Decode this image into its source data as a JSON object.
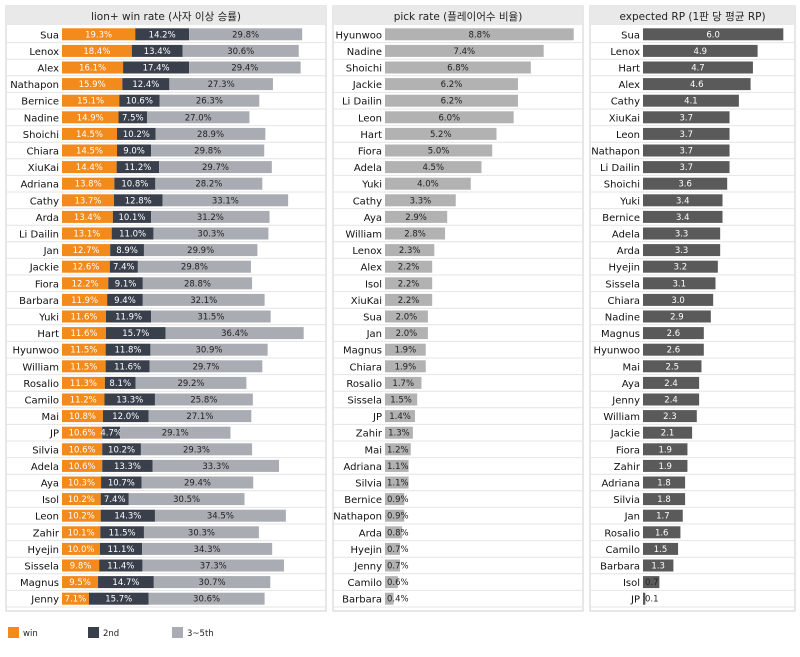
{
  "colors": {
    "win": "#f28a1c",
    "second": "#3a3f4c",
    "third_fifth": "#a9adb3",
    "pick": "#b2b2b2",
    "rp": "#5a5a5a",
    "header_bg": "#e9e9e9",
    "grid": "#e4e4e4",
    "panel_border": "#cfcfcf"
  },
  "chart_data": [
    {
      "type": "bar",
      "stacked": true,
      "orientation": "horizontal",
      "title": "lion+ win rate (사자 이상 승률)",
      "categories": [
        "Sua",
        "Lenox",
        "Alex",
        "Nathapon",
        "Bernice",
        "Nadine",
        "Shoichi",
        "Chiara",
        "XiuKai",
        "Adriana",
        "Cathy",
        "Arda",
        "Li Dailin",
        "Jan",
        "Jackie",
        "Fiora",
        "Barbara",
        "Yuki",
        "Hart",
        "Hyunwoo",
        "William",
        "Rosalio",
        "Camilo",
        "Mai",
        "JP",
        "Silvia",
        "Adela",
        "Aya",
        "Isol",
        "Leon",
        "Zahir",
        "Hyejin",
        "Sissela",
        "Magnus",
        "Jenny"
      ],
      "series": [
        {
          "name": "win",
          "values": [
            19.3,
            18.4,
            16.1,
            15.9,
            15.1,
            14.9,
            14.5,
            14.5,
            14.4,
            13.8,
            13.7,
            13.4,
            13.1,
            12.7,
            12.6,
            12.2,
            11.9,
            11.6,
            11.6,
            11.5,
            11.5,
            11.3,
            11.2,
            10.8,
            10.6,
            10.6,
            10.6,
            10.3,
            10.2,
            10.2,
            10.1,
            10.0,
            9.8,
            9.5,
            7.1
          ]
        },
        {
          "name": "2nd",
          "values": [
            14.2,
            13.4,
            17.4,
            12.4,
            10.6,
            7.5,
            10.2,
            9.0,
            11.2,
            10.8,
            12.8,
            10.1,
            11.0,
            8.9,
            7.4,
            9.1,
            9.4,
            11.9,
            15.7,
            11.8,
            11.6,
            8.1,
            13.3,
            12.0,
            4.7,
            10.2,
            13.3,
            10.7,
            7.4,
            14.3,
            11.5,
            11.1,
            11.4,
            14.7,
            15.7
          ]
        },
        {
          "name": "3~5th",
          "values": [
            29.8,
            30.6,
            29.4,
            27.3,
            26.3,
            27.0,
            28.9,
            29.8,
            29.7,
            28.2,
            33.1,
            31.2,
            30.3,
            29.9,
            29.8,
            28.8,
            32.1,
            31.5,
            36.4,
            30.9,
            29.7,
            29.2,
            25.8,
            27.1,
            29.1,
            29.3,
            33.3,
            29.4,
            30.5,
            34.5,
            30.3,
            34.3,
            37.3,
            30.7,
            30.6
          ]
        }
      ],
      "value_suffix": "%",
      "xlim": [
        0,
        68
      ]
    },
    {
      "type": "bar",
      "orientation": "horizontal",
      "title": "pick rate (플레이어수 비율)",
      "categories": [
        "Hyunwoo",
        "Nadine",
        "Shoichi",
        "Jackie",
        "Li Dailin",
        "Leon",
        "Hart",
        "Fiora",
        "Adela",
        "Yuki",
        "Cathy",
        "Aya",
        "William",
        "Lenox",
        "Alex",
        "Isol",
        "XiuKai",
        "Sua",
        "Jan",
        "Magnus",
        "Chiara",
        "Rosalio",
        "Sissela",
        "JP",
        "Zahir",
        "Mai",
        "Adriana",
        "Silvia",
        "Bernice",
        "Nathapon",
        "Arda",
        "Hyejin",
        "Jenny",
        "Camilo",
        "Barbara"
      ],
      "values": [
        8.8,
        7.4,
        6.8,
        6.2,
        6.2,
        6.0,
        5.2,
        5.0,
        4.5,
        4.0,
        3.3,
        2.9,
        2.8,
        2.3,
        2.2,
        2.2,
        2.2,
        2.0,
        2.0,
        1.9,
        1.9,
        1.7,
        1.5,
        1.4,
        1.3,
        1.2,
        1.1,
        1.1,
        0.9,
        0.9,
        0.8,
        0.7,
        0.7,
        0.6,
        0.4
      ],
      "value_suffix": "%",
      "xlim": [
        0,
        9
      ]
    },
    {
      "type": "bar",
      "orientation": "horizontal",
      "title": "expected RP (1판 당 평균 RP)",
      "categories": [
        "Sua",
        "Lenox",
        "Hart",
        "Alex",
        "Cathy",
        "XiuKai",
        "Leon",
        "Nathapon",
        "Li Dailin",
        "Shoichi",
        "Yuki",
        "Bernice",
        "Adela",
        "Arda",
        "Hyejin",
        "Sissela",
        "Chiara",
        "Nadine",
        "Magnus",
        "Hyunwoo",
        "Mai",
        "Aya",
        "Jenny",
        "William",
        "Jackie",
        "Fiora",
        "Zahir",
        "Adriana",
        "Silvia",
        "Jan",
        "Rosalio",
        "Camilo",
        "Barbara",
        "Isol",
        "JP"
      ],
      "values": [
        6.0,
        4.9,
        4.7,
        4.6,
        4.1,
        3.7,
        3.7,
        3.7,
        3.7,
        3.6,
        3.4,
        3.4,
        3.3,
        3.3,
        3.2,
        3.1,
        3.0,
        2.9,
        2.6,
        2.6,
        2.5,
        2.4,
        2.4,
        2.3,
        2.1,
        1.9,
        1.9,
        1.8,
        1.8,
        1.7,
        1.6,
        1.5,
        1.3,
        0.7,
        0.1
      ],
      "xlim": [
        0,
        6.2
      ]
    }
  ],
  "legend": [
    {
      "label": "win",
      "key": "win"
    },
    {
      "label": "2nd",
      "key": "second"
    },
    {
      "label": "3~5th",
      "key": "third_fifth"
    }
  ]
}
